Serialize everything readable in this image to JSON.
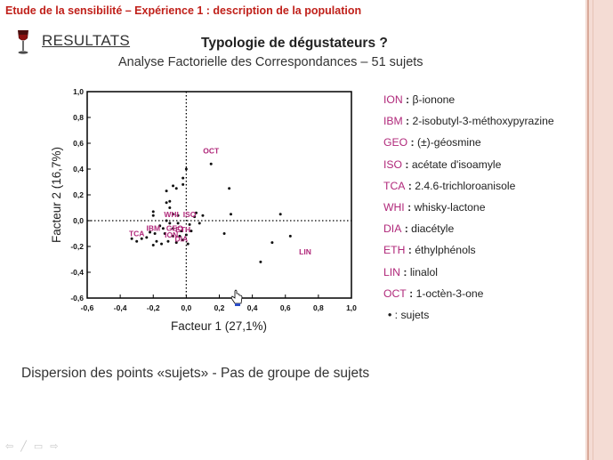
{
  "header": {
    "title": "Etude de la sensibilité – Expérience 1 : description de la population",
    "section": "RESULTATS",
    "question": "Typologie de dégustateurs ?",
    "subtitle": "Analyse Factorielle des Correspondances  – 51 sujets"
  },
  "colors": {
    "title_red": "#c0201a",
    "code_magenta": "#b0287a",
    "label_magenta": "#b0287a"
  },
  "legend": {
    "items": [
      {
        "code": "ION",
        "desc": "β-ionone"
      },
      {
        "code": "IBM",
        "desc": "2-isobutyl-3-méthoxypyrazine"
      },
      {
        "code": "GEO",
        "desc": "(±)-géosmine"
      },
      {
        "code": "ISO",
        "desc": "acétate d'isoamyle"
      },
      {
        "code": "TCA",
        "desc": "2.4.6-trichloroanisole"
      },
      {
        "code": "WHI",
        "desc": "whisky-lactone"
      },
      {
        "code": "DIA",
        "desc": "diacétyle"
      },
      {
        "code": "ETH",
        "desc": "éthylphénols"
      },
      {
        "code": "LIN",
        "desc": "linalol"
      },
      {
        "code": "OCT",
        "desc": "1-octèn-3-one"
      }
    ],
    "subjects_label": ": sujets"
  },
  "footer": {
    "caption": "Dispersion des points «sujets» - Pas de groupe de sujets"
  },
  "nav_icons": [
    "arrow-left-icon",
    "pen-icon",
    "slides-icon",
    "arrow-right-icon"
  ],
  "chart_data": {
    "type": "scatter",
    "xlabel": "Facteur 1 (27,1%)",
    "ylabel": "Facteur 2 (16,7%)",
    "xlim": [
      -0.6,
      1.0
    ],
    "ylim": [
      -0.6,
      1.0
    ],
    "xticks": [
      "-0,6",
      "-0,4",
      "-0,2",
      "0,0",
      "0,2",
      "0,4",
      "0,6",
      "0,8",
      "1,0"
    ],
    "yticks": [
      "-0,6",
      "-0,4",
      "-0,2",
      "0,0",
      "0,2",
      "0,4",
      "0,6",
      "0,8",
      "1,0"
    ],
    "reference_lines": "dotted at x=0 and y=0",
    "variables": [
      {
        "label": "OCT",
        "x": 0.15,
        "y": 0.54
      },
      {
        "label": "LIN",
        "x": 0.72,
        "y": -0.24
      },
      {
        "label": "TCA",
        "x": -0.3,
        "y": -0.1
      },
      {
        "label": "WHI",
        "x": -0.09,
        "y": 0.05
      },
      {
        "label": "ISO",
        "x": 0.02,
        "y": 0.05
      },
      {
        "label": "IBM",
        "x": -0.2,
        "y": -0.06
      },
      {
        "label": "GEO",
        "x": -0.07,
        "y": -0.06
      },
      {
        "label": "ION",
        "x": -0.09,
        "y": -0.11
      },
      {
        "label": "ETH",
        "x": -0.02,
        "y": -0.07
      },
      {
        "label": "DIA",
        "x": -0.03,
        "y": -0.14
      }
    ],
    "subjects": [
      [
        0.0,
        0.4
      ],
      [
        0.15,
        0.44
      ],
      [
        -0.02,
        0.33
      ],
      [
        -0.08,
        0.27
      ],
      [
        -0.06,
        0.25
      ],
      [
        -0.12,
        0.23
      ],
      [
        -0.02,
        0.28
      ],
      [
        -0.1,
        0.15
      ],
      [
        -0.12,
        0.14
      ],
      [
        -0.1,
        0.1
      ],
      [
        -0.2,
        0.07
      ],
      [
        -0.2,
        0.04
      ],
      [
        -0.08,
        0.05
      ],
      [
        -0.05,
        0.04
      ],
      [
        0.05,
        0.03
      ],
      [
        0.1,
        0.04
      ],
      [
        -0.12,
        0.0
      ],
      [
        -0.1,
        -0.02
      ],
      [
        -0.05,
        -0.02
      ],
      [
        0.02,
        -0.03
      ],
      [
        0.08,
        -0.02
      ],
      [
        -0.16,
        -0.04
      ],
      [
        -0.14,
        -0.06
      ],
      [
        -0.08,
        -0.06
      ],
      [
        -0.03,
        -0.08
      ],
      [
        0.03,
        -0.08
      ],
      [
        -0.22,
        -0.09
      ],
      [
        -0.19,
        -0.1
      ],
      [
        -0.13,
        -0.1
      ],
      [
        -0.08,
        -0.12
      ],
      [
        -0.04,
        -0.12
      ],
      [
        0.0,
        -0.11
      ],
      [
        -0.27,
        -0.14
      ],
      [
        -0.33,
        -0.14
      ],
      [
        -0.24,
        -0.13
      ],
      [
        -0.18,
        -0.16
      ],
      [
        -0.11,
        -0.16
      ],
      [
        -0.06,
        -0.17
      ],
      [
        -0.02,
        -0.15
      ],
      [
        0.01,
        -0.18
      ],
      [
        -0.2,
        -0.19
      ],
      [
        -0.3,
        -0.16
      ],
      [
        -0.15,
        -0.18
      ],
      [
        0.27,
        0.05
      ],
      [
        0.23,
        -0.1
      ],
      [
        0.52,
        -0.17
      ],
      [
        0.57,
        0.05
      ],
      [
        0.63,
        -0.12
      ],
      [
        0.45,
        -0.32
      ],
      [
        0.26,
        0.25
      ],
      [
        0.06,
        0.06
      ]
    ]
  }
}
